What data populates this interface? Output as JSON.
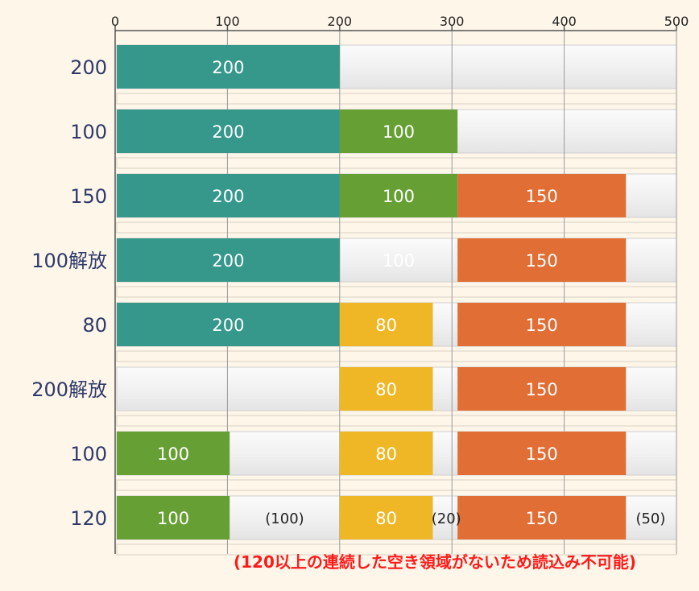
{
  "chart_data": {
    "type": "bar",
    "orientation": "horizontal-stacked-memory-map",
    "xlim": [
      0,
      500
    ],
    "xticks": [
      "0",
      "100",
      "200",
      "300",
      "400",
      "500"
    ],
    "grid": true,
    "colors": {
      "teal": "#36978b",
      "green": "#66a035",
      "yellow": "#efb726",
      "orange": "#e06e35",
      "empty": "#f2f2f2"
    },
    "rows": [
      {
        "label": "200",
        "segments": [
          {
            "start": 0,
            "end": 200,
            "color": "teal",
            "label": "200"
          }
        ]
      },
      {
        "label": "100",
        "segments": [
          {
            "start": 0,
            "end": 200,
            "color": "teal",
            "label": "200"
          },
          {
            "start": 200,
            "end": 305,
            "color": "green",
            "label": "100"
          }
        ]
      },
      {
        "label": "150",
        "segments": [
          {
            "start": 0,
            "end": 200,
            "color": "teal",
            "label": "200"
          },
          {
            "start": 200,
            "end": 305,
            "color": "green",
            "label": "100"
          },
          {
            "start": 305,
            "end": 455,
            "color": "orange",
            "label": "150"
          }
        ]
      },
      {
        "label": "100解放",
        "segments": [
          {
            "start": 0,
            "end": 200,
            "color": "teal",
            "label": "200"
          },
          {
            "start": 200,
            "end": 305,
            "color": "empty",
            "label": "100",
            "label_color": "#ffffff"
          },
          {
            "start": 305,
            "end": 455,
            "color": "orange",
            "label": "150"
          }
        ]
      },
      {
        "label": "80",
        "segments": [
          {
            "start": 0,
            "end": 200,
            "color": "teal",
            "label": "200"
          },
          {
            "start": 200,
            "end": 283,
            "color": "yellow",
            "label": "80"
          },
          {
            "start": 305,
            "end": 455,
            "color": "orange",
            "label": "150"
          }
        ]
      },
      {
        "label": "200解放",
        "segments": [
          {
            "start": 200,
            "end": 283,
            "color": "yellow",
            "label": "80"
          },
          {
            "start": 305,
            "end": 455,
            "color": "orange",
            "label": "150"
          }
        ]
      },
      {
        "label": "100",
        "segments": [
          {
            "start": 0,
            "end": 102,
            "color": "green",
            "label": "100"
          },
          {
            "start": 200,
            "end": 283,
            "color": "yellow",
            "label": "80"
          },
          {
            "start": 305,
            "end": 455,
            "color": "orange",
            "label": "150"
          }
        ]
      },
      {
        "label": "120",
        "segments": [
          {
            "start": 0,
            "end": 102,
            "color": "green",
            "label": "100"
          },
          {
            "start": 200,
            "end": 283,
            "color": "yellow",
            "label": "80"
          },
          {
            "start": 305,
            "end": 455,
            "color": "orange",
            "label": "150"
          }
        ],
        "gaps": [
          {
            "at": 151,
            "label": "(100)"
          },
          {
            "at": 295,
            "label": "(20)"
          },
          {
            "at": 477,
            "label": "(50)"
          }
        ]
      }
    ],
    "note": "(120以上の連続した空き領域がないため読込み不可能)"
  }
}
